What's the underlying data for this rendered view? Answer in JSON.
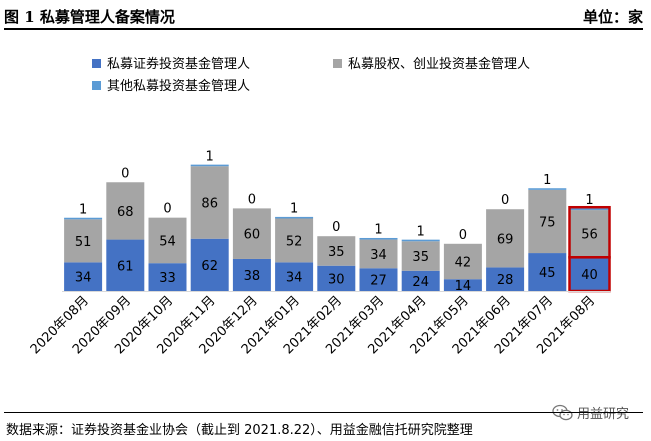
{
  "header": {
    "title": "图 1 私募管理人备案情况",
    "unit": "单位：家"
  },
  "footer": {
    "source": "数据来源：证券投资基金业协会（截止到 2021.8.22）、用益金融信托研究院整理"
  },
  "watermark": {
    "text": "用益研究"
  },
  "colors": {
    "securities": "#4472c4",
    "pe_vc": "#a5a5a5",
    "other": "#5b9bd5",
    "highlight": "#c00000",
    "axis": "#d9d9d9"
  },
  "chart_data": {
    "type": "bar",
    "stacked": true,
    "categories": [
      "2020年08月",
      "2020年09月",
      "2020年10月",
      "2020年11月",
      "2020年12月",
      "2021年01月",
      "2021年02月",
      "2021年03月",
      "2021年04月",
      "2021年05月",
      "2021年06月",
      "2021年07月",
      "2021年08月"
    ],
    "series": [
      {
        "name": "私募证券投资基金管理人",
        "values": [
          34,
          61,
          33,
          62,
          38,
          34,
          30,
          27,
          24,
          14,
          28,
          45,
          40
        ]
      },
      {
        "name": "私募股权、创业投资基金管理人",
        "values": [
          51,
          68,
          54,
          86,
          60,
          52,
          35,
          34,
          35,
          42,
          69,
          75,
          56
        ]
      },
      {
        "name": "其他私募投资基金管理人",
        "values": [
          1,
          0,
          0,
          1,
          0,
          1,
          0,
          1,
          1,
          0,
          0,
          1,
          1
        ]
      }
    ],
    "xlabel": "",
    "ylabel": "",
    "ylim": [
      0,
      150
    ],
    "grid": false,
    "legend_position": "top",
    "highlighted_category": "2021年08月"
  }
}
